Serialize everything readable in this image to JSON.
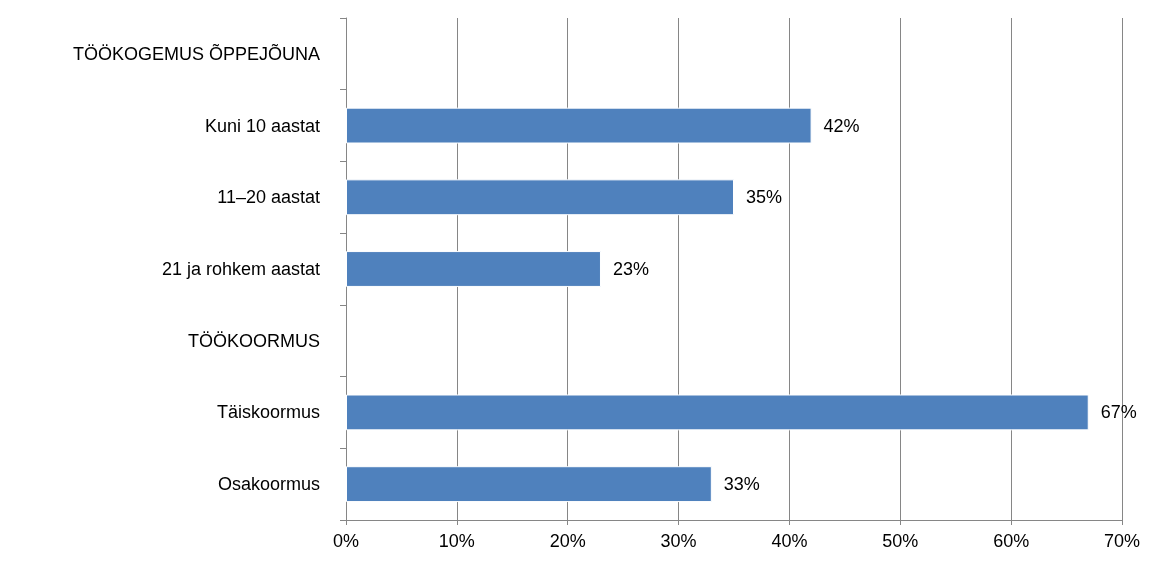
{
  "chart_data": {
    "type": "bar",
    "orientation": "horizontal",
    "categories": [
      "TÖÖKOGEMUS ÕPPEJÕUNA",
      "Kuni 10 aastat",
      "11–20 aastat",
      "21 ja rohkem aastat",
      "TÖÖKOORMUS",
      "Täiskoormus",
      "Osakoormus"
    ],
    "values": [
      null,
      42,
      35,
      23,
      null,
      67,
      33
    ],
    "value_labels": [
      null,
      "42%",
      "35%",
      "23%",
      null,
      "67%",
      "33%"
    ],
    "color": "#4f81bd",
    "xlim": [
      0,
      70
    ],
    "xticks": [
      {
        "value": 0,
        "label": "0%"
      },
      {
        "value": 10,
        "label": "10%"
      },
      {
        "value": 20,
        "label": "20%"
      },
      {
        "value": 30,
        "label": "30%"
      },
      {
        "value": 40,
        "label": "40%"
      },
      {
        "value": 50,
        "label": "50%"
      },
      {
        "value": 60,
        "label": "60%"
      },
      {
        "value": 70,
        "label": "70%"
      }
    ],
    "grid": "x"
  }
}
